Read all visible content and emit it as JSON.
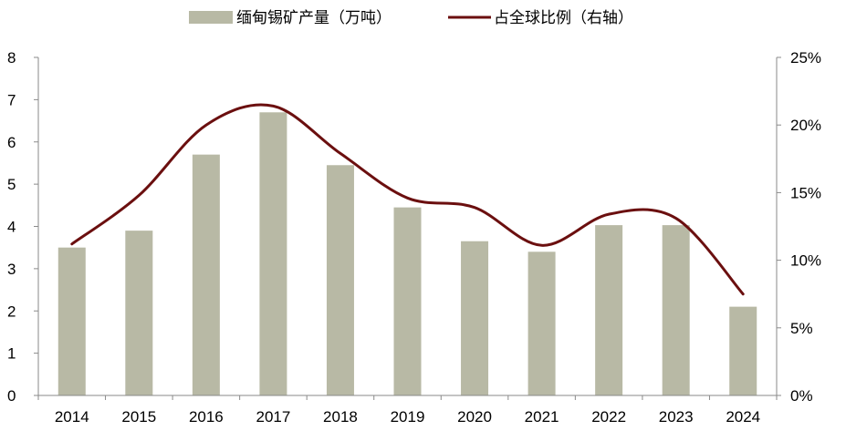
{
  "chart_data": {
    "type": "bar",
    "categories": [
      "2014",
      "2015",
      "2016",
      "2017",
      "2018",
      "2019",
      "2020",
      "2021",
      "2022",
      "2023",
      "2024"
    ],
    "series": [
      {
        "name": "缅甸锡矿产量（万吨）",
        "type": "bar",
        "axis": "left",
        "values": [
          3.5,
          3.9,
          5.7,
          6.7,
          5.45,
          4.45,
          3.65,
          3.4,
          4.03,
          4.03,
          2.1
        ]
      },
      {
        "name": "占全球比例（右轴）",
        "type": "line",
        "axis": "right",
        "smooth": true,
        "values": [
          11.2,
          14.8,
          20.0,
          21.4,
          17.9,
          14.6,
          13.9,
          11.1,
          13.4,
          13.1,
          7.5
        ]
      }
    ],
    "y_left": {
      "range": [
        0,
        8
      ],
      "ticks": [
        "0",
        "1",
        "2",
        "3",
        "4",
        "5",
        "6",
        "7",
        "8"
      ]
    },
    "y_right": {
      "range": [
        0,
        25
      ],
      "ticks": [
        "0%",
        "5%",
        "10%",
        "15%",
        "20%",
        "25%"
      ]
    },
    "grid": false,
    "legend_position": "top-center",
    "colors": {
      "bar": "#b8b9a5",
      "line": "#6b0f0f"
    }
  }
}
